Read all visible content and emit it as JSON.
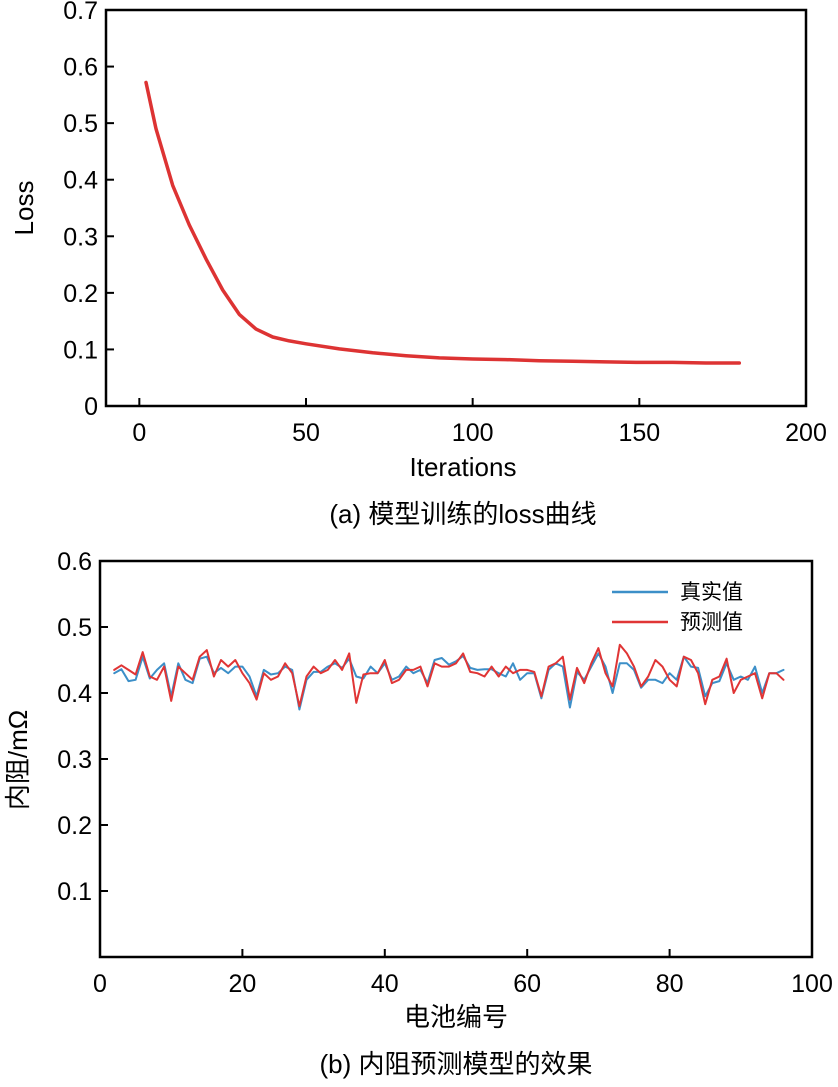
{
  "chart_data": [
    {
      "type": "line",
      "caption": "(a) 模型训练的loss曲线",
      "title": "",
      "xlabel": "Iterations",
      "ylabel": "Loss",
      "xlim": [
        -10,
        200
      ],
      "ylim": [
        0,
        0.7
      ],
      "xticks": [
        0,
        50,
        100,
        150,
        200
      ],
      "yticks": [
        0,
        0.1,
        0.2,
        0.3,
        0.4,
        0.5,
        0.6,
        0.7
      ],
      "grid": false,
      "colors": {
        "line": "#dd3333"
      },
      "series": [
        {
          "x": [
            2,
            5,
            10,
            15,
            20,
            25,
            30,
            35,
            40,
            45,
            50,
            60,
            70,
            80,
            90,
            100,
            110,
            120,
            130,
            140,
            150,
            160,
            170,
            180
          ],
          "y": [
            0.572,
            0.49,
            0.39,
            0.32,
            0.26,
            0.205,
            0.162,
            0.136,
            0.122,
            0.115,
            0.11,
            0.101,
            0.094,
            0.089,
            0.085,
            0.083,
            0.082,
            0.08,
            0.079,
            0.078,
            0.077,
            0.077,
            0.076,
            0.076
          ]
        }
      ]
    },
    {
      "type": "line",
      "caption": "(b) 内阻预测模型的效果",
      "title": "",
      "xlabel": "电池编号",
      "ylabel": "内阻/mΩ",
      "xlim": [
        0,
        100
      ],
      "ylim": [
        0,
        0.6
      ],
      "xticks": [
        0,
        20,
        40,
        60,
        80,
        100
      ],
      "yticks": [
        0.1,
        0.2,
        0.3,
        0.4,
        0.5,
        0.6
      ],
      "grid": false,
      "legend_position": "top-right",
      "x": [
        2,
        3,
        4,
        5,
        6,
        7,
        8,
        9,
        10,
        11,
        12,
        13,
        14,
        15,
        16,
        17,
        18,
        19,
        20,
        21,
        22,
        23,
        24,
        25,
        26,
        27,
        28,
        29,
        30,
        31,
        32,
        33,
        34,
        35,
        36,
        37,
        38,
        39,
        40,
        41,
        42,
        43,
        44,
        45,
        46,
        47,
        48,
        49,
        50,
        51,
        52,
        53,
        54,
        55,
        56,
        57,
        58,
        59,
        60,
        61,
        62,
        63,
        64,
        65,
        66,
        67,
        68,
        69,
        70,
        71,
        72,
        73,
        74,
        75,
        76,
        77,
        78,
        79,
        80,
        81,
        82,
        83,
        84,
        85,
        86,
        87,
        88,
        89,
        90,
        91,
        92,
        93,
        94,
        95,
        96
      ],
      "series": [
        {
          "name": "真实值",
          "color": "#3c8fc8",
          "values": [
            0.43,
            0.436,
            0.418,
            0.42,
            0.455,
            0.422,
            0.435,
            0.445,
            0.395,
            0.445,
            0.42,
            0.415,
            0.452,
            0.455,
            0.43,
            0.438,
            0.43,
            0.44,
            0.44,
            0.425,
            0.395,
            0.435,
            0.428,
            0.43,
            0.44,
            0.435,
            0.375,
            0.42,
            0.432,
            0.432,
            0.44,
            0.445,
            0.438,
            0.452,
            0.425,
            0.422,
            0.44,
            0.43,
            0.445,
            0.42,
            0.425,
            0.44,
            0.43,
            0.435,
            0.415,
            0.45,
            0.453,
            0.443,
            0.448,
            0.456,
            0.438,
            0.435,
            0.436,
            0.436,
            0.43,
            0.425,
            0.445,
            0.42,
            0.43,
            0.43,
            0.392,
            0.435,
            0.445,
            0.44,
            0.378,
            0.432,
            0.42,
            0.44,
            0.46,
            0.44,
            0.4,
            0.445,
            0.445,
            0.435,
            0.408,
            0.42,
            0.42,
            0.415,
            0.43,
            0.42,
            0.455,
            0.44,
            0.438,
            0.395,
            0.415,
            0.418,
            0.445,
            0.42,
            0.425,
            0.42,
            0.44,
            0.4,
            0.43,
            0.43,
            0.435
          ]
        },
        {
          "name": "预测值",
          "color": "#e03535",
          "values": [
            0.435,
            0.442,
            0.435,
            0.428,
            0.462,
            0.425,
            0.42,
            0.44,
            0.388,
            0.44,
            0.43,
            0.42,
            0.455,
            0.465,
            0.425,
            0.45,
            0.44,
            0.45,
            0.43,
            0.415,
            0.39,
            0.43,
            0.42,
            0.425,
            0.445,
            0.43,
            0.38,
            0.425,
            0.44,
            0.43,
            0.435,
            0.45,
            0.435,
            0.46,
            0.385,
            0.428,
            0.43,
            0.43,
            0.45,
            0.415,
            0.42,
            0.435,
            0.435,
            0.44,
            0.41,
            0.445,
            0.44,
            0.44,
            0.445,
            0.46,
            0.432,
            0.43,
            0.425,
            0.44,
            0.425,
            0.44,
            0.43,
            0.435,
            0.435,
            0.432,
            0.395,
            0.44,
            0.445,
            0.455,
            0.39,
            0.438,
            0.415,
            0.445,
            0.468,
            0.43,
            0.41,
            0.473,
            0.46,
            0.44,
            0.41,
            0.425,
            0.45,
            0.44,
            0.42,
            0.41,
            0.455,
            0.45,
            0.43,
            0.383,
            0.42,
            0.425,
            0.452,
            0.4,
            0.42,
            0.425,
            0.43,
            0.392,
            0.43,
            0.43,
            0.42
          ]
        }
      ]
    }
  ]
}
